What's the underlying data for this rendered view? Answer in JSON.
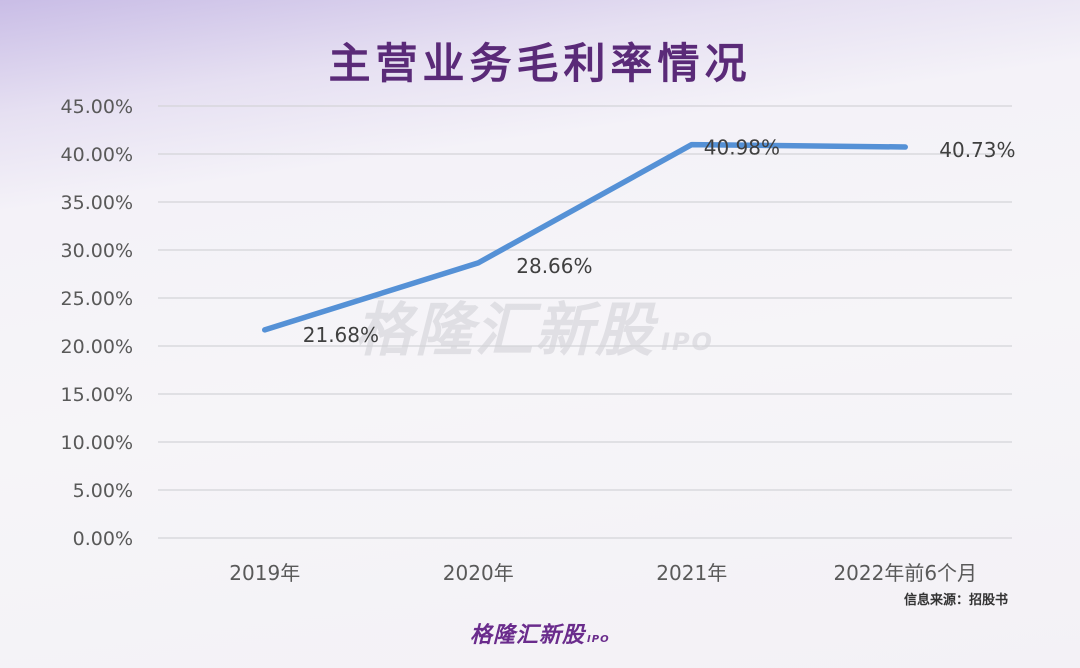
{
  "title": "主营业务毛利率情况",
  "source_note": "信息来源：招股书",
  "logo": {
    "name": "格隆汇新股",
    "suffix": "IPO"
  },
  "colors": {
    "line": "#5591d6",
    "title": "#5a2a78",
    "grid": "#d4d4d8"
  },
  "chart_data": {
    "type": "line",
    "title": "主营业务毛利率情况",
    "xlabel": "",
    "ylabel": "",
    "categories": [
      "2019年",
      "2020年",
      "2021年",
      "2022年前6个月"
    ],
    "series": [
      {
        "values": [
          21.68,
          28.66,
          40.98,
          40.73
        ]
      }
    ],
    "data_labels": [
      "21.68%",
      "28.66%",
      "40.98%",
      "40.73%"
    ],
    "y_ticks": [
      "0.00%",
      "5.00%",
      "10.00%",
      "15.00%",
      "20.00%",
      "25.00%",
      "30.00%",
      "35.00%",
      "40.00%",
      "45.00%"
    ],
    "ylim": [
      0,
      45
    ],
    "grid": true,
    "legend": "none"
  }
}
